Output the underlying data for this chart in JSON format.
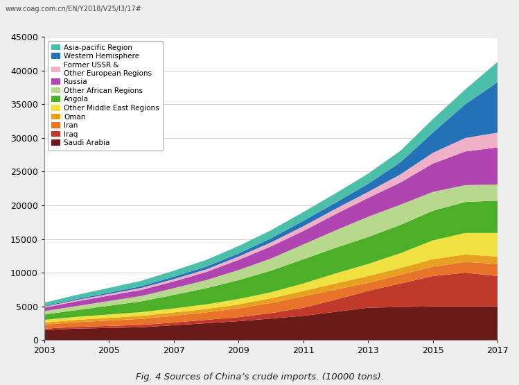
{
  "years": [
    2003,
    2004,
    2005,
    2006,
    2007,
    2008,
    2009,
    2010,
    2011,
    2012,
    2013,
    2014,
    2015,
    2016,
    2017
  ],
  "series": {
    "Saudi Arabia": [
      1500,
      1700,
      1800,
      1900,
      2200,
      2500,
      2800,
      3200,
      3600,
      4200,
      4800,
      4900,
      5000,
      5000,
      5000
    ],
    "Iraq": [
      200,
      250,
      300,
      350,
      400,
      500,
      600,
      800,
      1200,
      1800,
      2500,
      3500,
      4500,
      5000,
      4500
    ],
    "Iran": [
      600,
      700,
      800,
      900,
      1000,
      1100,
      1300,
      1500,
      1700,
      1500,
      1200,
      1300,
      1400,
      1600,
      1800
    ],
    "Oman": [
      300,
      350,
      400,
      450,
      500,
      500,
      600,
      700,
      800,
      900,
      1000,
      1000,
      1100,
      1100,
      1100
    ],
    "Other Middle East Regions": [
      400,
      450,
      500,
      550,
      600,
      700,
      800,
      900,
      1100,
      1500,
      1800,
      2200,
      2800,
      3200,
      3500
    ],
    "Angola": [
      800,
      1000,
      1300,
      1600,
      2000,
      2400,
      2800,
      3200,
      3600,
      3800,
      4000,
      4200,
      4400,
      4600,
      4800
    ],
    "Other African Regions": [
      500,
      600,
      700,
      800,
      1000,
      1200,
      1500,
      1800,
      2200,
      2600,
      3000,
      3000,
      2800,
      2500,
      2400
    ],
    "Russia": [
      500,
      700,
      800,
      900,
      1000,
      1200,
      1500,
      1800,
      2000,
      2400,
      2800,
      3300,
      4200,
      5000,
      5500
    ],
    "Former USSR & Other European Regions": [
      150,
      200,
      250,
      300,
      350,
      400,
      500,
      600,
      700,
      800,
      900,
      1200,
      1600,
      2000,
      2200
    ],
    "Western Hemisphere": [
      100,
      150,
      200,
      250,
      350,
      400,
      450,
      600,
      800,
      900,
      1200,
      1800,
      3000,
      5000,
      7500
    ],
    "Asia-pacific Region": [
      500,
      600,
      700,
      800,
      900,
      1000,
      1100,
      1200,
      1300,
      1400,
      1500,
      1700,
      2000,
      2200,
      3000
    ]
  },
  "colors": {
    "Saudi Arabia": "#6b1a1a",
    "Iraq": "#c0392b",
    "Iran": "#e8742a",
    "Oman": "#e8a020",
    "Other Middle East Regions": "#f0e040",
    "Angola": "#4caf28",
    "Other African Regions": "#b8d98d",
    "Russia": "#b044b0",
    "Former USSR & Other European Regions": "#f0b0c8",
    "Western Hemisphere": "#2471b8",
    "Asia-pacific Region": "#4bbfaa"
  },
  "ylim": [
    0,
    45000
  ],
  "yticks": [
    0,
    5000,
    10000,
    15000,
    20000,
    25000,
    30000,
    35000,
    40000,
    45000
  ],
  "title": "Fig. 4 Sources of China’s crude imports. (10000 tons).",
  "url_text": "www.coag.com.cn/EN/Y2018/V25/I3/17#",
  "background_color": "#eeeeee",
  "plot_bg": "#ffffff",
  "legend_label_Former": "Former USSR &\nOther European Regions"
}
